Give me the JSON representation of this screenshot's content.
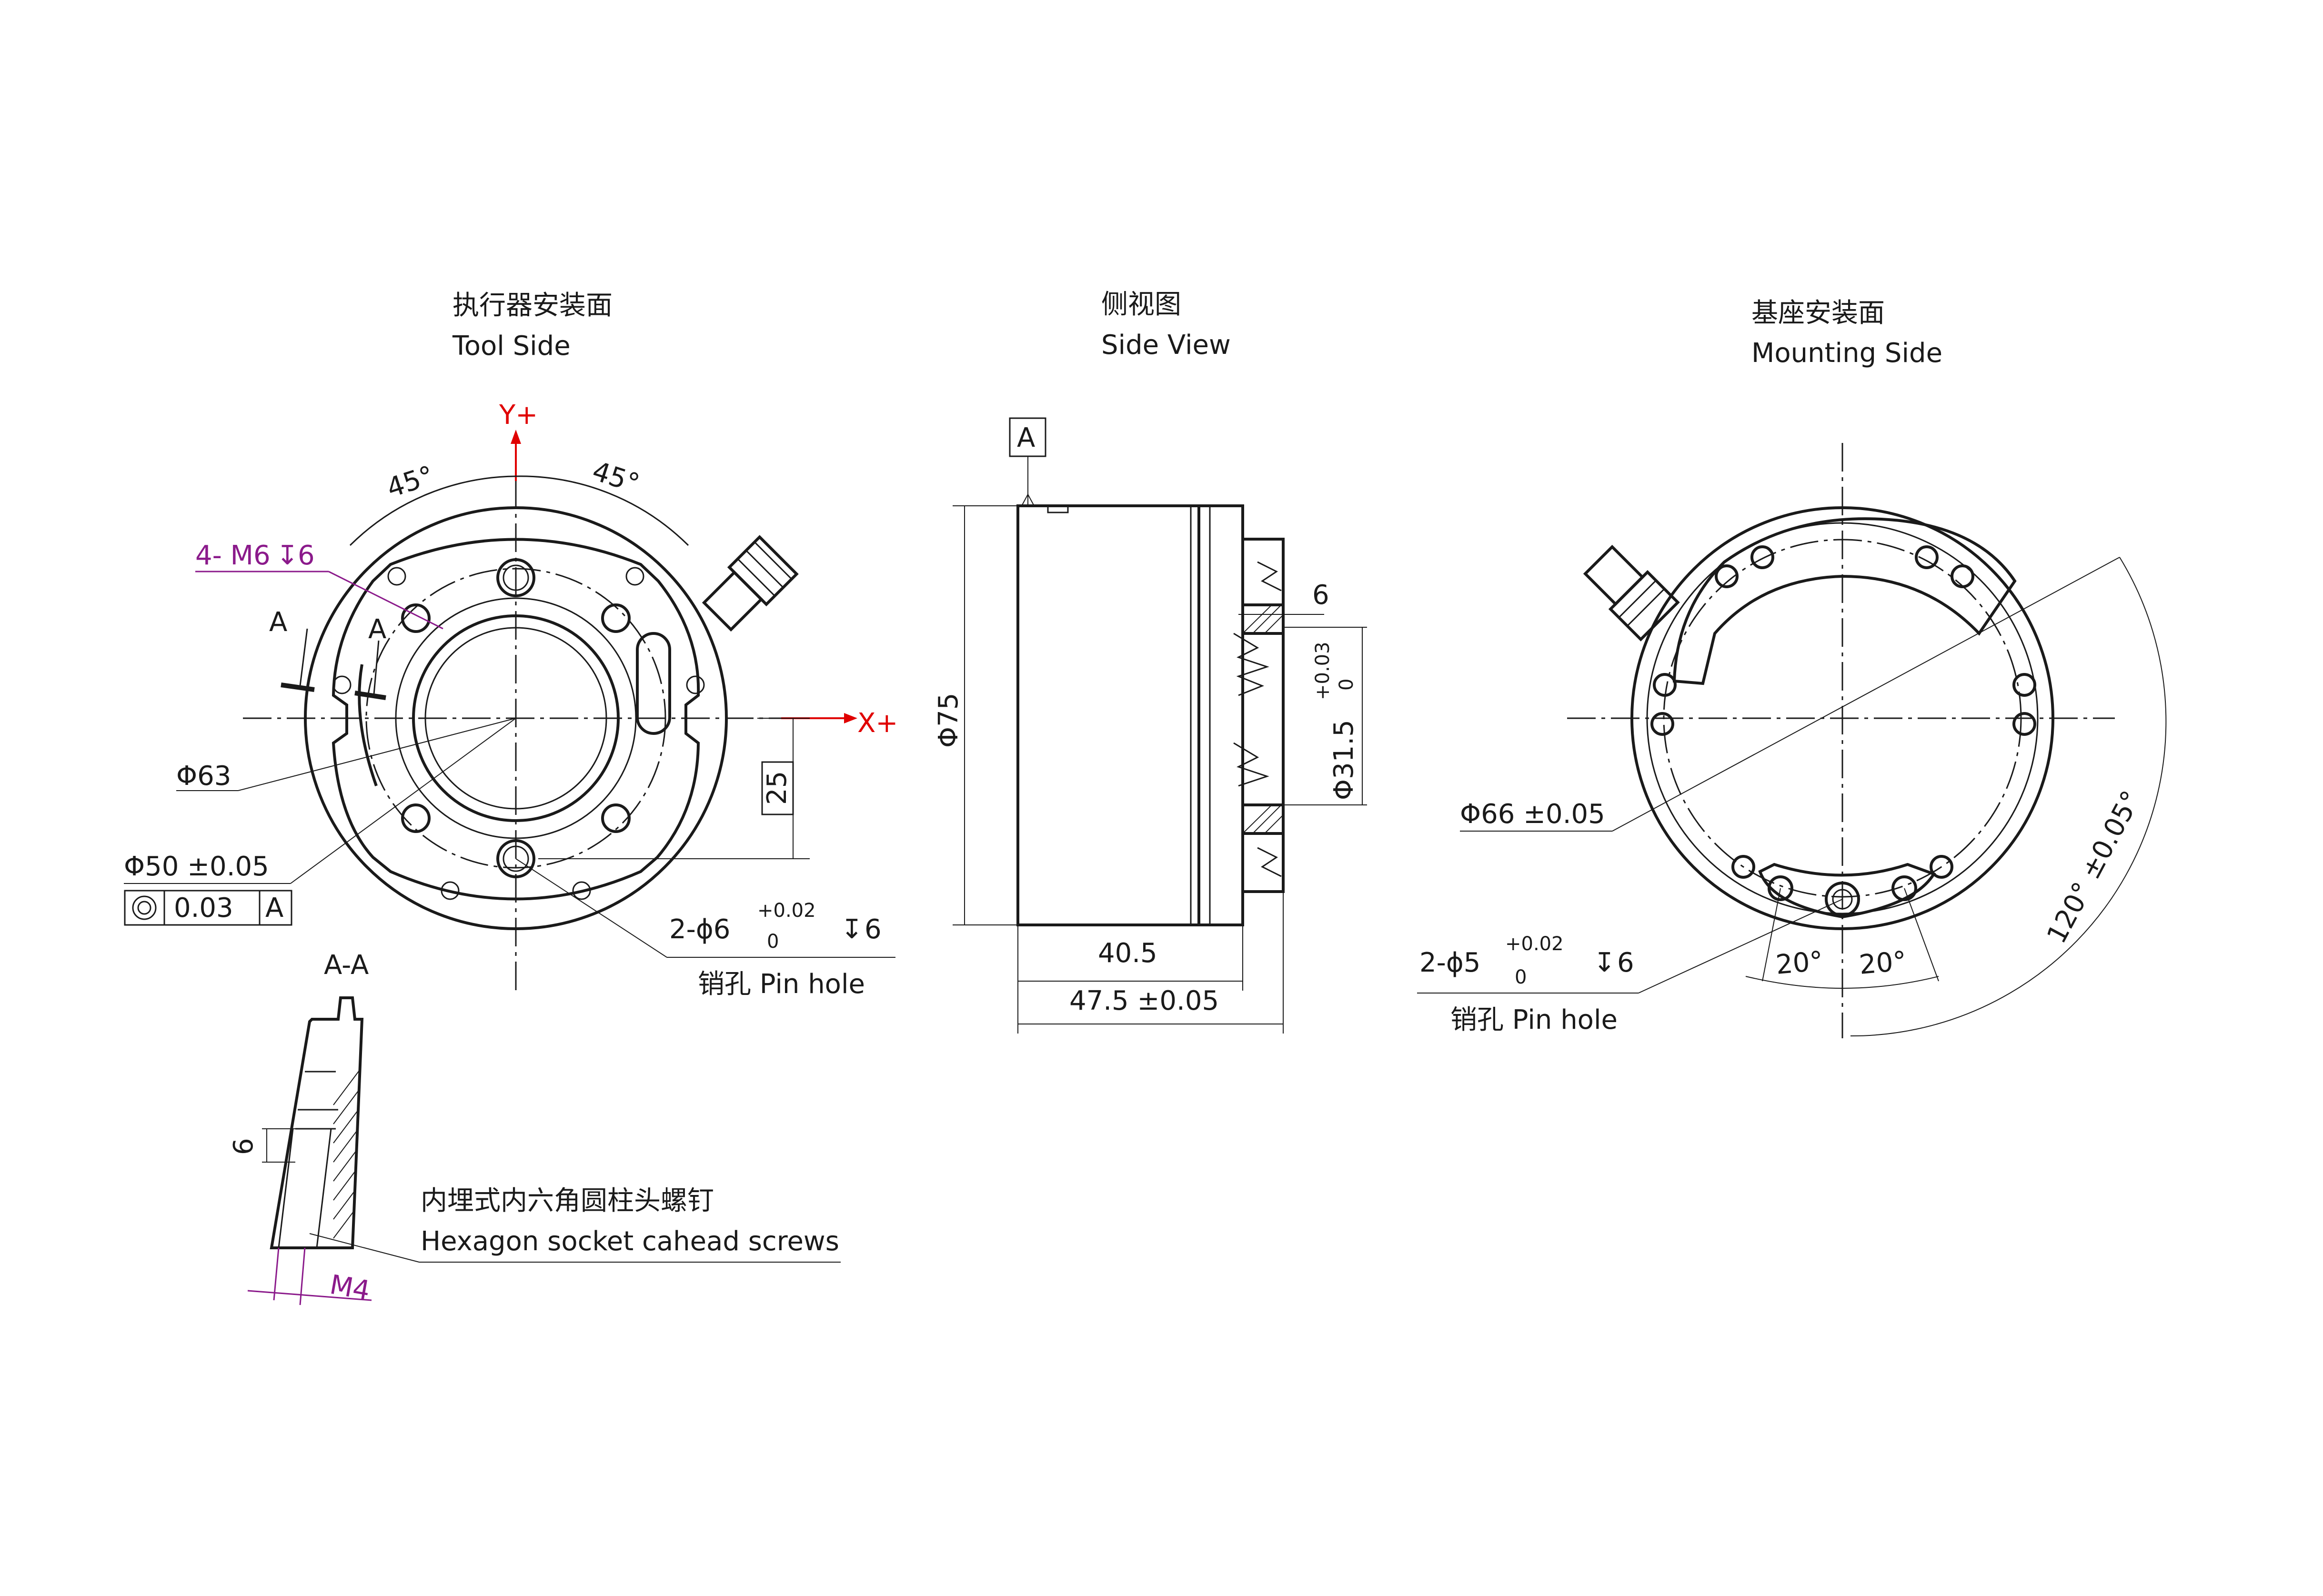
{
  "views": {
    "tool_side": {
      "title_cn": "执行器安装面",
      "title_en": "Tool Side"
    },
    "side_view": {
      "title_cn": "侧视图",
      "title_en": "Side View"
    },
    "mounting_side": {
      "title_cn": "基座安装面",
      "title_en": "Mounting Side"
    }
  },
  "axes": {
    "y": "Y+",
    "x": "X+"
  },
  "colors": {
    "axis": "#e00000",
    "thread": "#8b1a8b",
    "line": "#1a1a1a"
  },
  "tool_side": {
    "angle_left": "45°",
    "angle_right": "45°",
    "thread_callout": "4- M6",
    "thread_depth": "6",
    "section_letter_1": "A",
    "section_letter_2": "A",
    "dia_outer": "Φ63",
    "dia_bolt": "Φ50 ±0.05",
    "tol_value": "0.03",
    "tol_datum": "A",
    "dim_25": "25",
    "pin_count_dia": "2-ϕ6",
    "pin_tol_upper": "+0.02",
    "pin_tol_lower": "0",
    "pin_depth": "6",
    "pin_label": "销孔  Pin hole"
  },
  "section": {
    "title": "A-A",
    "dim_6": "6",
    "thread": "M4",
    "screw_cn": "内埋式内六角圆柱头螺钉",
    "screw_en": "Hexagon socket cahead screws"
  },
  "side_view": {
    "datum": "A",
    "dia_75": "Φ75",
    "dim_6": "6",
    "dia_31": "Φ31.5",
    "dia_31_upper": "+0.03",
    "dia_31_lower": "0",
    "len_40": "40.5",
    "len_47": "47.5 ±0.05"
  },
  "mounting_side": {
    "dia_66": "Φ66 ±0.05",
    "angle_120": "120° ±0.05°",
    "angle_20a": "20°",
    "angle_20b": "20°",
    "pin_count_dia": "2-ϕ5",
    "pin_tol_upper": "+0.02",
    "pin_tol_lower": "0",
    "pin_depth": "6",
    "pin_label": "销孔  Pin hole"
  }
}
